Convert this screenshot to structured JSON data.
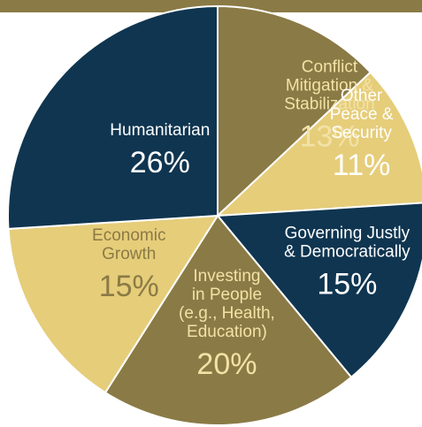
{
  "chart_data": {
    "type": "pie",
    "title": "",
    "top_bar_color": "#8a7a45",
    "slices": [
      {
        "label": [
          "Conflict",
          "Mitigation &",
          "Stabilization"
        ],
        "percent_label": "13%",
        "value": 13,
        "color": "#8a7a45",
        "text_color": "#f2e2a6"
      },
      {
        "label": [
          "Other",
          "Peace &",
          "Security"
        ],
        "percent_label": "11%",
        "value": 11,
        "color": "#e6cd7a",
        "text_color": "#ffffff"
      },
      {
        "label": [
          "Governing Justly",
          "& Democratically"
        ],
        "percent_label": "15%",
        "value": 15,
        "color": "#0f3550",
        "text_color": "#ffffff"
      },
      {
        "label": [
          "Investing",
          "in People",
          "(e.g., Health,",
          "Education)"
        ],
        "percent_label": "20%",
        "value": 20,
        "color": "#8a7a45",
        "text_color": "#f2e2a6"
      },
      {
        "label": [
          "Economic",
          "Growth"
        ],
        "percent_label": "15%",
        "value": 15,
        "color": "#e6cd7a",
        "text_color": "#8a7a45"
      },
      {
        "label": [
          "Humanitarian"
        ],
        "percent_label": "26%",
        "value": 26,
        "color": "#0f3550",
        "text_color": "#ffffff"
      }
    ]
  }
}
